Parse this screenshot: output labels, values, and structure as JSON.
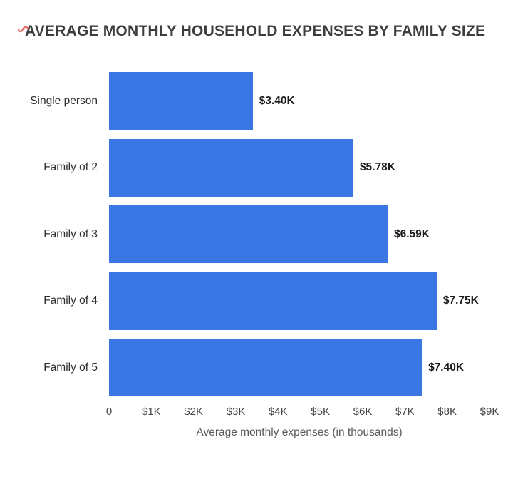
{
  "annotation": {
    "red_mark_color": "#e0544a"
  },
  "chart_data": {
    "type": "bar",
    "orientation": "horizontal",
    "title": "AVERAGE MONTHLY HOUSEHOLD EXPENSES BY FAMILY SIZE",
    "categories": [
      "Single person",
      "Family of 2",
      "Family of 3",
      "Family of 4",
      "Family of 5"
    ],
    "values": [
      3.4,
      5.78,
      6.59,
      7.75,
      7.4
    ],
    "value_labels": [
      "$3.40K",
      "$5.78K",
      "$6.59K",
      "$7.75K",
      "$7.40K"
    ],
    "xlabel": "Average monthly expenses (in thousands)",
    "xlim": [
      0,
      9
    ],
    "tick_labels": [
      "0",
      "$1K",
      "$2K",
      "$3K",
      "$4K",
      "$5K",
      "$6K",
      "$7K",
      "$8K",
      "$9K"
    ],
    "bar_color": "#3b76e5",
    "grid": false,
    "legend": false
  }
}
